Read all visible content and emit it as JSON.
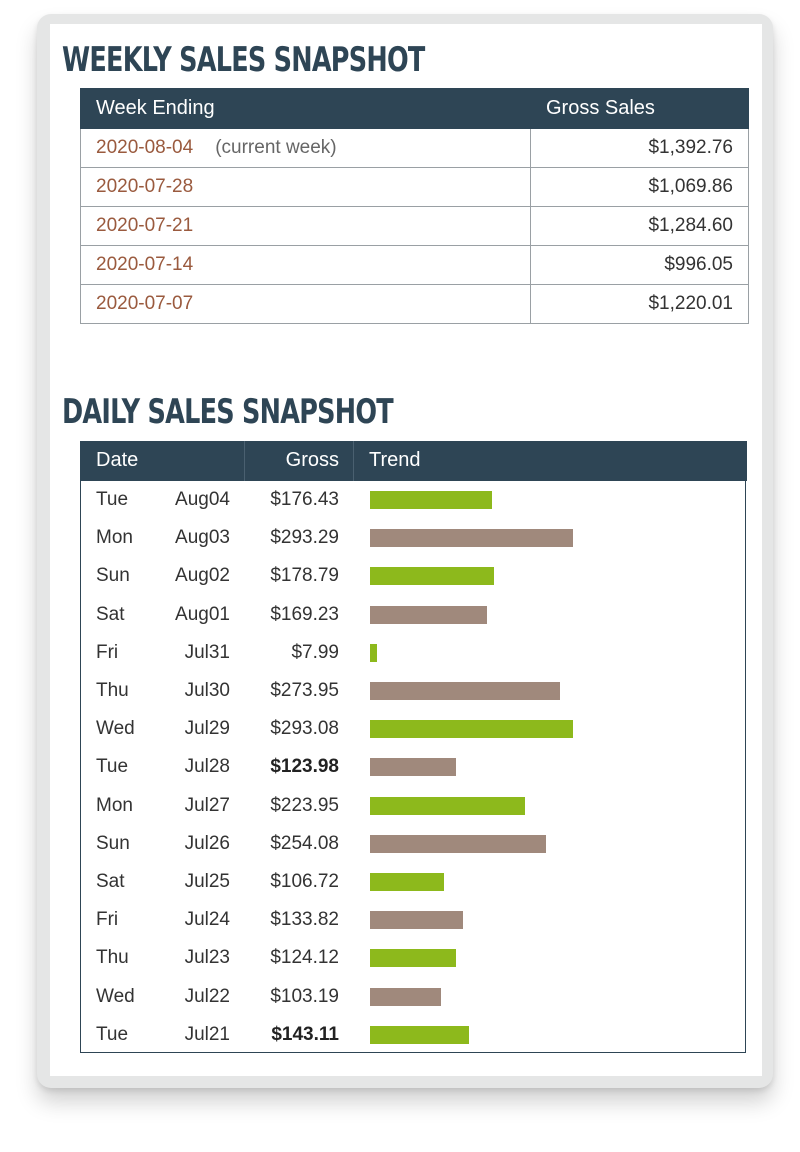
{
  "weekly": {
    "title": "WEEKLY SALES SNAPSHOT",
    "headers": [
      "Week Ending",
      "Gross Sales"
    ],
    "rows": [
      {
        "week": "2020-08-04",
        "note": "(current week)",
        "gross": "$1,392.76"
      },
      {
        "week": "2020-07-28",
        "note": "",
        "gross": "$1,069.86"
      },
      {
        "week": "2020-07-21",
        "note": "",
        "gross": "$1,284.60"
      },
      {
        "week": "2020-07-14",
        "note": "",
        "gross": "$996.05"
      },
      {
        "week": "2020-07-07",
        "note": "",
        "gross": "$1,220.01"
      }
    ]
  },
  "daily": {
    "title": "DAILY SALES SNAPSHOT",
    "headers": [
      "Date",
      "Gross",
      "Trend"
    ],
    "colors": {
      "green": "#8db91c",
      "taupe": "#a0897c"
    },
    "rows": [
      {
        "day": "Tue",
        "date": "Aug04",
        "gross": "$176.43",
        "value": 176.43,
        "bold": false,
        "color": "green"
      },
      {
        "day": "Mon",
        "date": "Aug03",
        "gross": "$293.29",
        "value": 293.29,
        "bold": false,
        "color": "taupe"
      },
      {
        "day": "Sun",
        "date": "Aug02",
        "gross": "$178.79",
        "value": 178.79,
        "bold": false,
        "color": "green"
      },
      {
        "day": "Sat",
        "date": "Aug01",
        "gross": "$169.23",
        "value": 169.23,
        "bold": false,
        "color": "taupe"
      },
      {
        "day": "Fri",
        "date": "Jul31",
        "gross": "$7.99",
        "value": 7.99,
        "bold": false,
        "color": "green"
      },
      {
        "day": "Thu",
        "date": "Jul30",
        "gross": "$273.95",
        "value": 273.95,
        "bold": false,
        "color": "taupe"
      },
      {
        "day": "Wed",
        "date": "Jul29",
        "gross": "$293.08",
        "value": 293.08,
        "bold": false,
        "color": "green"
      },
      {
        "day": "Tue",
        "date": "Jul28",
        "gross": "$123.98",
        "value": 123.98,
        "bold": true,
        "color": "taupe"
      },
      {
        "day": "Mon",
        "date": "Jul27",
        "gross": "$223.95",
        "value": 223.95,
        "bold": false,
        "color": "green"
      },
      {
        "day": "Sun",
        "date": "Jul26",
        "gross": "$254.08",
        "value": 254.08,
        "bold": false,
        "color": "taupe"
      },
      {
        "day": "Sat",
        "date": "Jul25",
        "gross": "$106.72",
        "value": 106.72,
        "bold": false,
        "color": "green"
      },
      {
        "day": "Fri",
        "date": "Jul24",
        "gross": "$133.82",
        "value": 133.82,
        "bold": false,
        "color": "taupe"
      },
      {
        "day": "Thu",
        "date": "Jul23",
        "gross": "$124.12",
        "value": 124.12,
        "bold": false,
        "color": "green"
      },
      {
        "day": "Wed",
        "date": "Jul22",
        "gross": "$103.19",
        "value": 103.19,
        "bold": false,
        "color": "taupe"
      },
      {
        "day": "Tue",
        "date": "Jul21",
        "gross": "$143.11",
        "value": 143.11,
        "bold": true,
        "color": "green"
      }
    ]
  }
}
